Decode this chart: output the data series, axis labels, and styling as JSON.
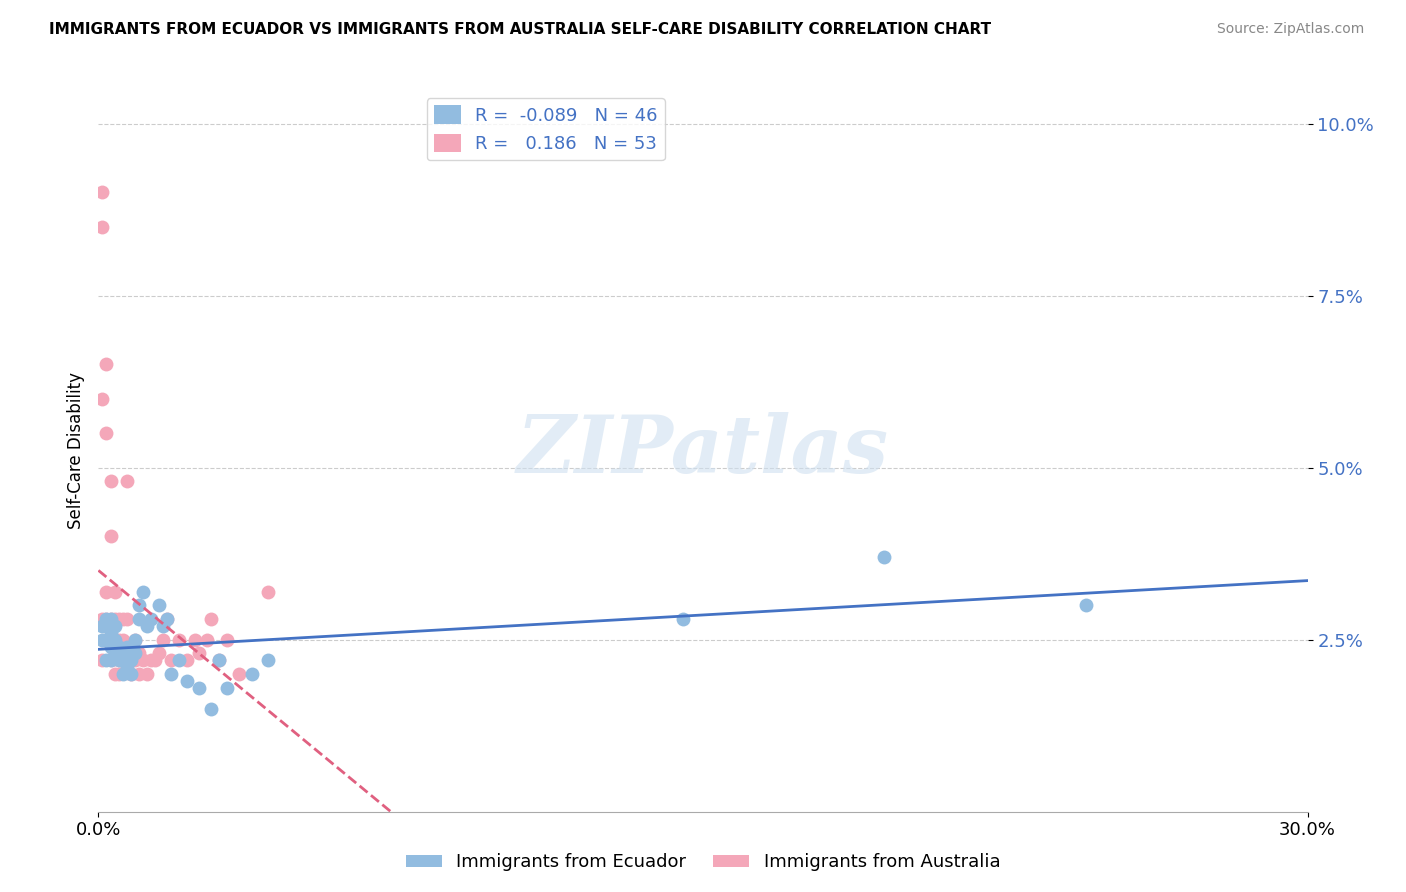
{
  "title": "IMMIGRANTS FROM ECUADOR VS IMMIGRANTS FROM AUSTRALIA SELF-CARE DISABILITY CORRELATION CHART",
  "source": "Source: ZipAtlas.com",
  "ylabel": "Self-Care Disability",
  "xlim": [
    0.0,
    0.3
  ],
  "ylim": [
    0.0,
    0.105
  ],
  "yticks": [
    0.025,
    0.05,
    0.075,
    0.1
  ],
  "ytick_labels": [
    "2.5%",
    "5.0%",
    "7.5%",
    "10.0%"
  ],
  "xticks": [
    0.0,
    0.3
  ],
  "xtick_labels": [
    "0.0%",
    "30.0%"
  ],
  "ecuador_color": "#92bce0",
  "australia_color": "#f4a7b9",
  "ecuador_line_color": "#4472c4",
  "australia_line_color": "#e06080",
  "R_ecuador": -0.089,
  "N_ecuador": 46,
  "R_australia": 0.186,
  "N_australia": 53,
  "background_color": "#ffffff",
  "watermark": "ZIPatlas",
  "ecuador_x": [
    0.001,
    0.001,
    0.002,
    0.002,
    0.002,
    0.003,
    0.003,
    0.003,
    0.003,
    0.003,
    0.004,
    0.004,
    0.004,
    0.004,
    0.005,
    0.005,
    0.005,
    0.006,
    0.006,
    0.006,
    0.007,
    0.007,
    0.008,
    0.008,
    0.009,
    0.009,
    0.01,
    0.01,
    0.011,
    0.012,
    0.013,
    0.015,
    0.016,
    0.017,
    0.018,
    0.02,
    0.022,
    0.025,
    0.028,
    0.03,
    0.032,
    0.038,
    0.042,
    0.145,
    0.195,
    0.245
  ],
  "ecuador_y": [
    0.027,
    0.025,
    0.028,
    0.025,
    0.022,
    0.022,
    0.024,
    0.026,
    0.028,
    0.025,
    0.023,
    0.024,
    0.025,
    0.027,
    0.022,
    0.023,
    0.024,
    0.02,
    0.022,
    0.023,
    0.021,
    0.024,
    0.02,
    0.022,
    0.023,
    0.025,
    0.03,
    0.028,
    0.032,
    0.027,
    0.028,
    0.03,
    0.027,
    0.028,
    0.02,
    0.022,
    0.019,
    0.018,
    0.015,
    0.022,
    0.018,
    0.02,
    0.022,
    0.028,
    0.037,
    0.03
  ],
  "australia_x": [
    0.001,
    0.001,
    0.001,
    0.001,
    0.001,
    0.002,
    0.002,
    0.002,
    0.002,
    0.002,
    0.003,
    0.003,
    0.003,
    0.003,
    0.003,
    0.004,
    0.004,
    0.004,
    0.004,
    0.005,
    0.005,
    0.005,
    0.005,
    0.006,
    0.006,
    0.006,
    0.007,
    0.007,
    0.007,
    0.008,
    0.008,
    0.009,
    0.009,
    0.01,
    0.01,
    0.011,
    0.012,
    0.013,
    0.014,
    0.015,
    0.016,
    0.017,
    0.018,
    0.02,
    0.022,
    0.024,
    0.025,
    0.027,
    0.028,
    0.03,
    0.032,
    0.035,
    0.042
  ],
  "australia_y": [
    0.085,
    0.09,
    0.06,
    0.028,
    0.022,
    0.065,
    0.055,
    0.032,
    0.028,
    0.025,
    0.048,
    0.04,
    0.028,
    0.025,
    0.022,
    0.032,
    0.028,
    0.023,
    0.02,
    0.028,
    0.025,
    0.022,
    0.02,
    0.028,
    0.025,
    0.022,
    0.048,
    0.028,
    0.022,
    0.023,
    0.02,
    0.025,
    0.022,
    0.023,
    0.02,
    0.022,
    0.02,
    0.022,
    0.022,
    0.023,
    0.025,
    0.028,
    0.022,
    0.025,
    0.022,
    0.025,
    0.023,
    0.025,
    0.028,
    0.022,
    0.025,
    0.02,
    0.032
  ]
}
